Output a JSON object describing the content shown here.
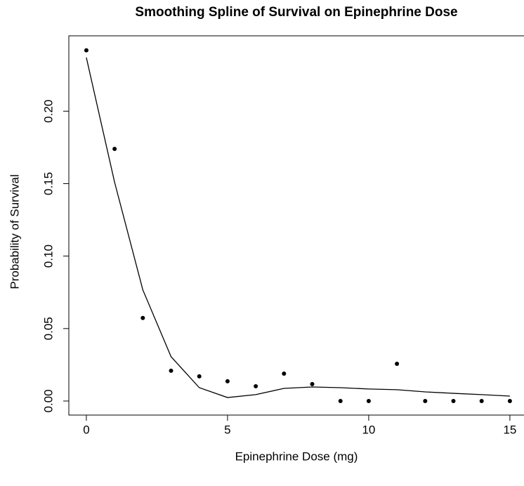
{
  "chart_data": {
    "type": "line",
    "title": "Smoothing Spline of Survival on Epinephrine Dose",
    "xlabel": "Epinephrine Dose (mg)",
    "ylabel": "Probability of Survival",
    "x": [
      0,
      1,
      2,
      3,
      4,
      5,
      6,
      7,
      8,
      9,
      10,
      11,
      12,
      13,
      14,
      15
    ],
    "series": [
      {
        "mode": "markers",
        "color": "#000000",
        "values": [
          0.242,
          0.174,
          0.0573,
          0.0209,
          0.017,
          0.0136,
          0.0102,
          0.0189,
          0.0117,
          0,
          0,
          0.0257,
          0,
          0,
          0,
          0
        ]
      },
      {
        "mode": "line",
        "color": "#000000",
        "values": [
          0.237,
          0.151,
          0.0767,
          0.0306,
          0.0092,
          0.0024,
          0.0044,
          0.0087,
          0.0097,
          0.0092,
          0.0083,
          0.0078,
          0.0063,
          0.0053,
          0.0044,
          0.0034
        ]
      }
    ],
    "xlim": [
      -0.62,
      15.5
    ],
    "xticks": [
      0,
      5,
      10,
      15
    ],
    "ylim": [
      -0.0097,
      0.252
    ],
    "yticks": [
      {
        "value": 0,
        "label": "0.00"
      },
      {
        "value": 0.05,
        "label": "0.05"
      },
      {
        "value": 0.1,
        "label": "0.10"
      },
      {
        "value": 0.15,
        "label": "0.15"
      },
      {
        "value": 0.2,
        "label": "0.20"
      }
    ]
  }
}
